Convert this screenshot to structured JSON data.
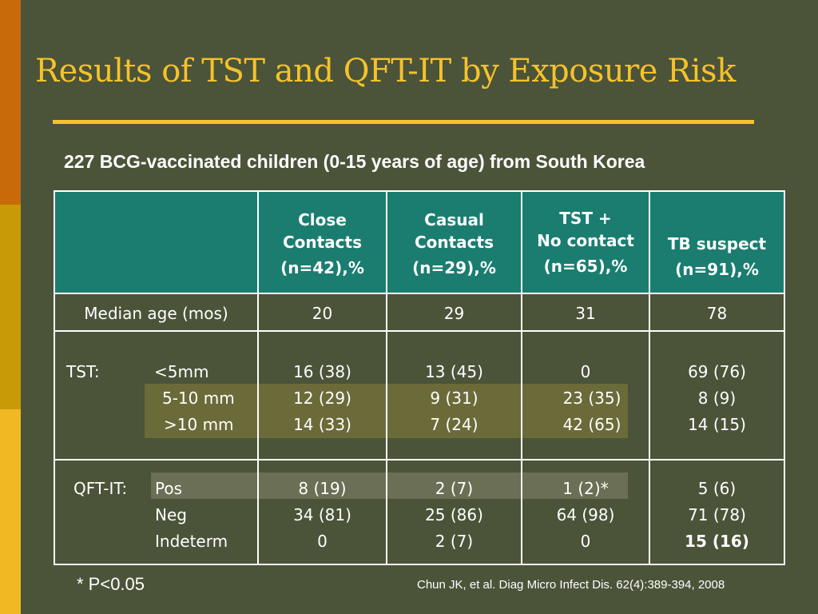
{
  "title": "Results of TST and QFT-IT by Exposure Risk",
  "subtitle": "227 BCG-vaccinated children (0-15 years of age) from South Korea",
  "colors": {
    "background": "#4b5339",
    "title": "#f5c22b",
    "header": "#1a7d70",
    "highlight": "#6b6b3a"
  },
  "table": {
    "columns": [
      {
        "line1": "Close",
        "line2": "Contacts",
        "n": "(n=42),%"
      },
      {
        "line1": "Casual",
        "line2": "Contacts",
        "n": "(n=29),%"
      },
      {
        "line1": "TST +",
        "line2": "No contact",
        "n": "(n=65),%"
      },
      {
        "line1": "",
        "line2": "TB suspect",
        "n": "(n=91),%"
      }
    ],
    "median_age": {
      "label": "Median age (mos)",
      "values": [
        "20",
        "29",
        "31",
        "78"
      ]
    },
    "tst": {
      "label": "TST:",
      "rows": [
        {
          "label": "<5mm",
          "values": [
            "16 (38)",
            "13 (45)",
            "0",
            "69 (76)"
          ]
        },
        {
          "label": "5-10 mm",
          "values": [
            "12 (29)",
            "9 (31)",
            "23 (35)",
            "8 (9)"
          ]
        },
        {
          "label": ">10 mm",
          "values": [
            "14 (33)",
            "7 (24)",
            "42 (65)",
            "14 (15)"
          ]
        }
      ]
    },
    "qft": {
      "label": "QFT-IT:",
      "rows": [
        {
          "label": "Pos",
          "values": [
            "8 (19)",
            "2 (7)",
            "1 (2)*",
            "5 (6)"
          ]
        },
        {
          "label": "Neg",
          "values": [
            "34 (81)",
            "25 (86)",
            "64 (98)",
            "71 (78)"
          ]
        },
        {
          "label": "Indeterm",
          "values": [
            "0",
            "2 (7)",
            "0",
            "15 (16)"
          ]
        }
      ]
    }
  },
  "footnote": "* P<0.05",
  "citation": "Chun  JK, et al. Diag Micro Infect Dis. 62(4):389-394, 2008"
}
